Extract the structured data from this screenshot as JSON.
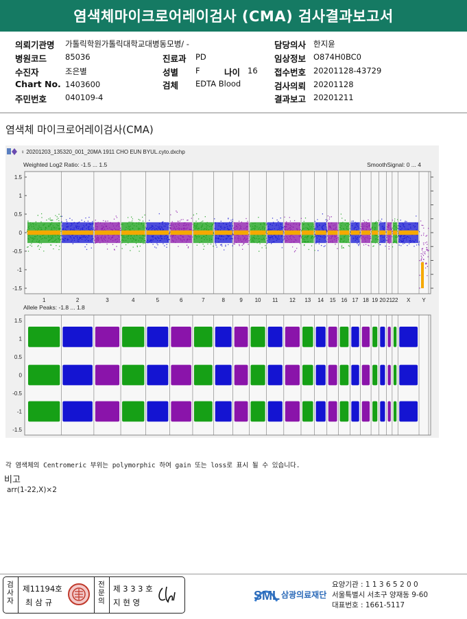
{
  "title": "염색체마이크로어레이검사 (CMA) 검사결과보고서",
  "info": {
    "hospital_label": "의뢰기관명",
    "hospital": "가톨릭학원가톨릭대학교대병동모병/ -",
    "code_label": "병원코드",
    "code": "85036",
    "patient_label": "수진자",
    "patient": "조은별",
    "chart_label": "Chart No.",
    "chart": "1403600",
    "resident_label": "주민번호",
    "resident": "040109-4",
    "dept_label": "진료과",
    "dept": "PD",
    "sex_label": "성별",
    "sex": "F",
    "age_label": "나이",
    "age": "16",
    "specimen_label": "검체",
    "specimen": "EDTA Blood",
    "doctor_label": "담당의사",
    "doctor": "한지윤",
    "clinical_label": "임상정보",
    "clinical": "O874H0BC0",
    "receipt_label": "접수번호",
    "receipt": "20201128-43729",
    "request_label": "검사의뢰",
    "request": "20201128",
    "report_label": "결과보고",
    "report": "20201211"
  },
  "section_title": "염색체 마이크로어레이검사(CMA)",
  "plot": {
    "filename": "20201203_135320_001_20MA 1911 CHO EUN BYUL.cyto.dxchp",
    "top_label": "Weighted Log2 Ratio: -1.5 ... 1.5",
    "smooth_label": "SmoothSignal: 0 ... 4",
    "bottom_label": "Allele Peaks: -1.8 ... 1.8",
    "left_ticks_top": [
      "1.5",
      "1",
      "0.5",
      "0",
      "-0.5",
      "-1",
      "-1.5"
    ],
    "right_ticks_top": [
      "4",
      "3.5",
      "3",
      "2.5",
      "2",
      "1.5",
      "1",
      "0.5",
      "0"
    ],
    "ticks_bottom_left": [
      "1.5",
      "1",
      "0.5",
      "0",
      "-0.5",
      "-1",
      "-1.5"
    ],
    "ticks_bottom_right": [
      "1.5",
      "1",
      "0.5",
      "0",
      "-0.5",
      "-1",
      "-1.5"
    ],
    "chromosomes": [
      "1",
      "2",
      "3",
      "4",
      "5",
      "6",
      "7",
      "8",
      "9",
      "10",
      "11",
      "12",
      "13",
      "14",
      "15",
      "16",
      "17",
      "18",
      "19",
      "20",
      "21",
      "22",
      "X",
      "Y"
    ],
    "colors": {
      "green": "#16a016",
      "blue": "#1414d2",
      "purple": "#8a14aa",
      "orange": "#f5a800"
    }
  },
  "note": "각 염색체의 Centromeric 부위는 polymorphic 하여 gain 또는 loss로 표시 될 수 있습니다.",
  "remark_label": "비고",
  "iscn": "arr(1-22,X)×2",
  "footer": {
    "examiner_label": "검사자",
    "examiner_no": "제11194호",
    "examiner_name": "최 삼 규",
    "specialist_label": "전문의",
    "specialist_no": "제 3 3 3 호",
    "specialist_name": "지 현 영",
    "lab_logo": "SML",
    "lab_name": "삼광의료재단",
    "lab_code": "요양기관 : 1 1 3 6 5 2 0 0",
    "lab_address": "서울특별시 서초구 양재동 9-60",
    "lab_phone": "대표번호 : 1661-5117"
  }
}
